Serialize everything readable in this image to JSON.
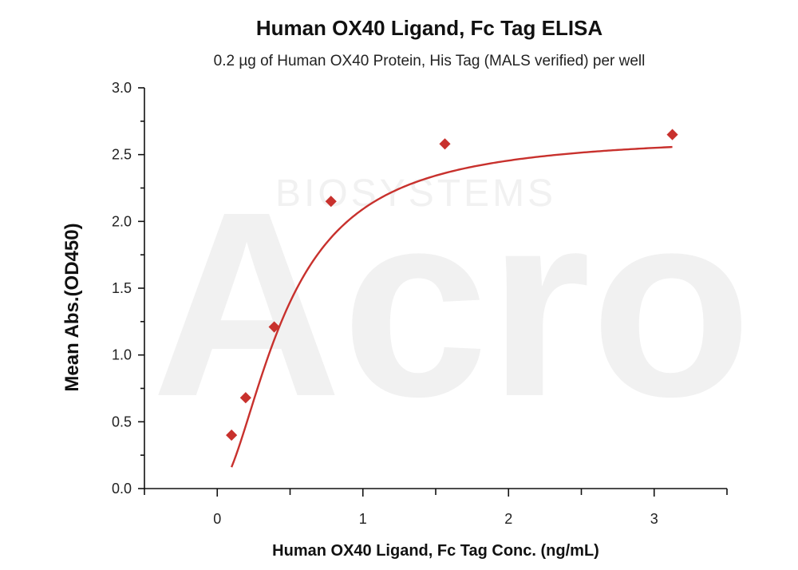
{
  "watermark": {
    "logo": "Acro",
    "sub": "BIOSYSTEMS"
  },
  "chart_data": {
    "type": "scatter",
    "title": "Human OX40 Ligand, Fc Tag ELISA",
    "subtitle": "0.2 µg of Human OX40 Protein, His Tag (MALS verified) per well",
    "xlabel": "Human OX40 Ligand, Fc Tag Conc. (ng/mL)",
    "ylabel": "Mean Abs.(OD450)",
    "xlim": [
      -0.5,
      3.5
    ],
    "ylim": [
      0,
      3.0
    ],
    "x_ticks": [
      0,
      1,
      2,
      3
    ],
    "x_tick_labels": [
      "0",
      "1",
      "2",
      "3"
    ],
    "y_ticks": [
      0.0,
      0.5,
      1.0,
      1.5,
      2.0,
      2.5,
      3.0
    ],
    "y_tick_labels": [
      "0.0",
      "0.5",
      "1.0",
      "1.5",
      "2.0",
      "2.5",
      "3.0"
    ],
    "series": [
      {
        "name": "Human OX40 Ligand, Fc Tag",
        "marker": "diamond",
        "color": "#c8312d",
        "x": [
          0.098,
          0.195,
          0.391,
          0.781,
          1.563,
          3.125
        ],
        "y": [
          0.4,
          0.68,
          1.21,
          2.15,
          2.58,
          2.65
        ]
      }
    ],
    "fit": {
      "model": "4PL",
      "color": "#c8312d",
      "bottom": 0.0,
      "top": 2.65,
      "ec50": 0.47,
      "hill": 1.75,
      "x_range": [
        0.098,
        3.125
      ]
    },
    "grid": false
  }
}
